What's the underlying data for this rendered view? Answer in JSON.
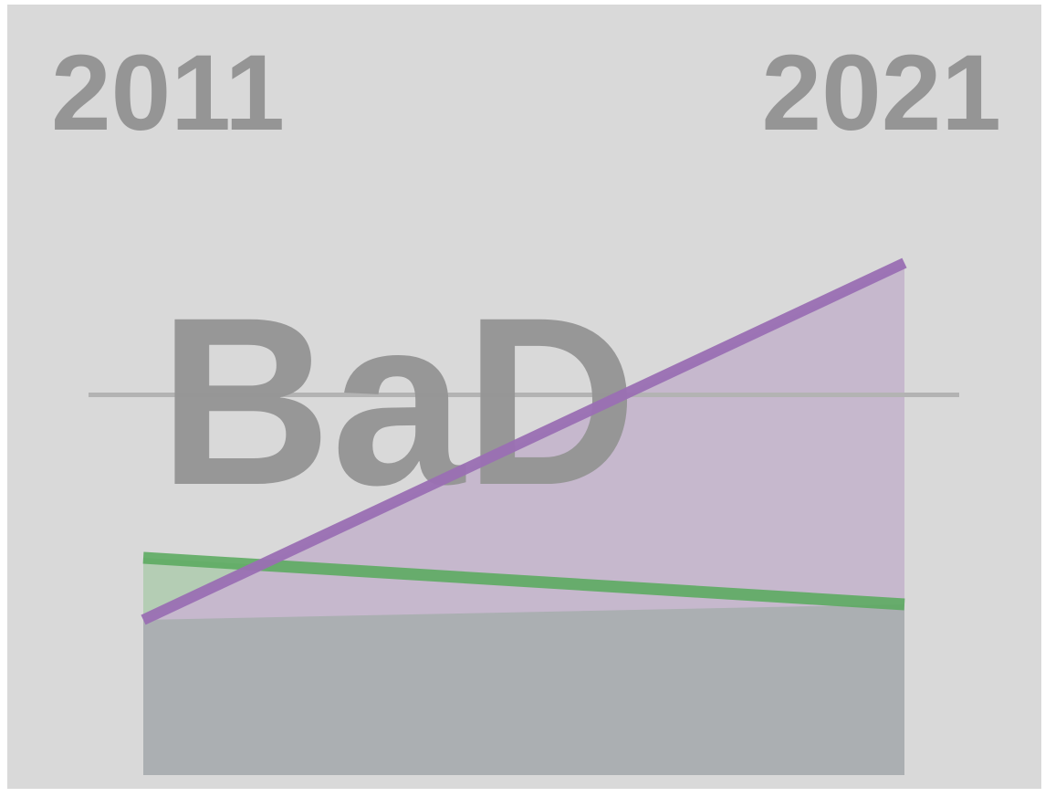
{
  "labels": {
    "start_year": "2011",
    "end_year": "2021",
    "center_text": "BaD"
  },
  "colors": {
    "background": "#d9d9d9",
    "label_gray": "#959595",
    "green_line": "#5aaa5e",
    "green_area": "#b4cdb4",
    "purple_line": "#9a6fb3",
    "purple_area": "#c6b8cd",
    "overlap_area": "#abafb2",
    "reference_line": "#b3b3b3"
  },
  "chart_data": {
    "type": "area",
    "title": "",
    "xlabel": "",
    "ylabel": "",
    "x": [
      "2011",
      "2021"
    ],
    "ylim": [
      0,
      100
    ],
    "reference_value": 49,
    "series": [
      {
        "key": "green",
        "values": [
          28,
          22
        ]
      },
      {
        "key": "purple",
        "values": [
          20,
          66
        ]
      }
    ],
    "grid": false,
    "legend": false
  }
}
